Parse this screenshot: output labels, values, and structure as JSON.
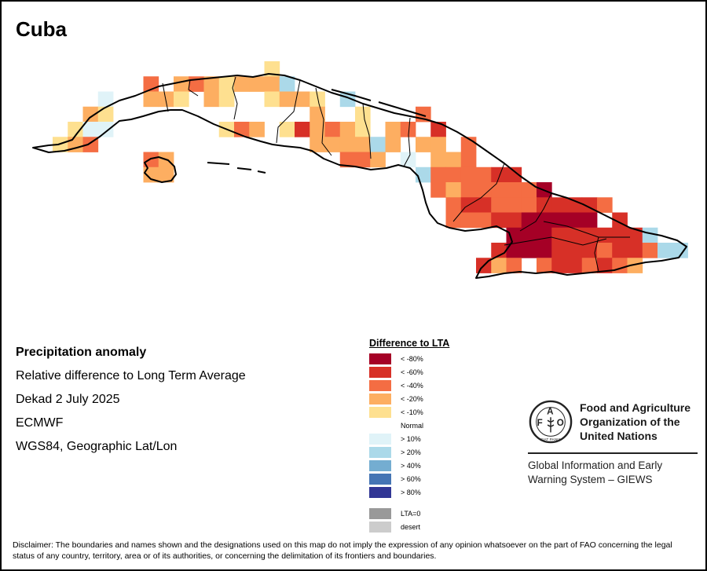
{
  "header": {
    "title": "Cuba"
  },
  "info": {
    "product": "Precipitation anomaly",
    "description": "Relative difference to Long Term Average",
    "period": "Dekad 2 July 2025",
    "source": "ECMWF",
    "projection": "WGS84, Geographic Lat/Lon"
  },
  "legend": {
    "title": "Difference to LTA",
    "classes": [
      {
        "code": "A",
        "label": "< -80%",
        "color": "#a50026"
      },
      {
        "code": "B",
        "label": "< -60%",
        "color": "#d73027"
      },
      {
        "code": "C",
        "label": "< -40%",
        "color": "#f46d43"
      },
      {
        "code": "D",
        "label": "< -20%",
        "color": "#fdae61"
      },
      {
        "code": "E",
        "label": "< -10%",
        "color": "#fee090"
      },
      {
        "code": ".",
        "label": "Normal",
        "color": "#ffffff"
      },
      {
        "code": "F",
        "label": "> 10%",
        "color": "#e0f3f8"
      },
      {
        "code": "G",
        "label": "> 20%",
        "color": "#abd9e9"
      },
      {
        "code": "H",
        "label": "> 40%",
        "color": "#74add1"
      },
      {
        "code": "I",
        "label": "> 60%",
        "color": "#4575b4"
      },
      {
        "code": "J",
        "label": "> 80%",
        "color": "#313695"
      }
    ],
    "extra": [
      {
        "label": "LTA=0",
        "color": "#999999"
      },
      {
        "label": "desert",
        "color": "#cccccc"
      }
    ]
  },
  "map_data": {
    "description": "Gridded precipitation anomaly classes (rows north to south, columns west to east); codes reference legend.classes",
    "grid": [
      "..............E...........................",
      "......C.DCDEDDDG..........................",
      "...F..DDE.DE..EDDE.G......................",
      "..DE.............D..E...C.................",
      ".EFF.......ECD.EBDCDE.DC.B................",
      "EDC..............DDDDGD.DD.C..............",
      "......CD...........CCD.F.DDC..............",
      "......DD................GCCCCBB...........",
      ".........................CDCCCCCA.........",
      "..........................CBBCCCBBBBC.....",
      "..........................CCCBBAAAAA.B....",
      "..............................AAABBBBBBG..",
      ".............................BAAABBBCBBCGG",
      "............................BDC.CBBCBCD..."
    ]
  },
  "organization": {
    "name_line1": "Food and Agriculture",
    "name_line2": "Organization of the",
    "name_line3": "United Nations",
    "system_line1": "Global Information and Early",
    "system_line2": "Warning System – GIEWS",
    "logo_letters": [
      "F",
      "A",
      "O"
    ],
    "logo_motto": "FIAT PANIS"
  },
  "disclaimer": "Disclaimer: The boundaries and names shown and the designations used on this map do not imply the expression of any opinion whatsoever on the part of FAO concerning the legal status of any country, territory, area or of its authorities, or concerning the delimitation of its frontiers and boundaries."
}
